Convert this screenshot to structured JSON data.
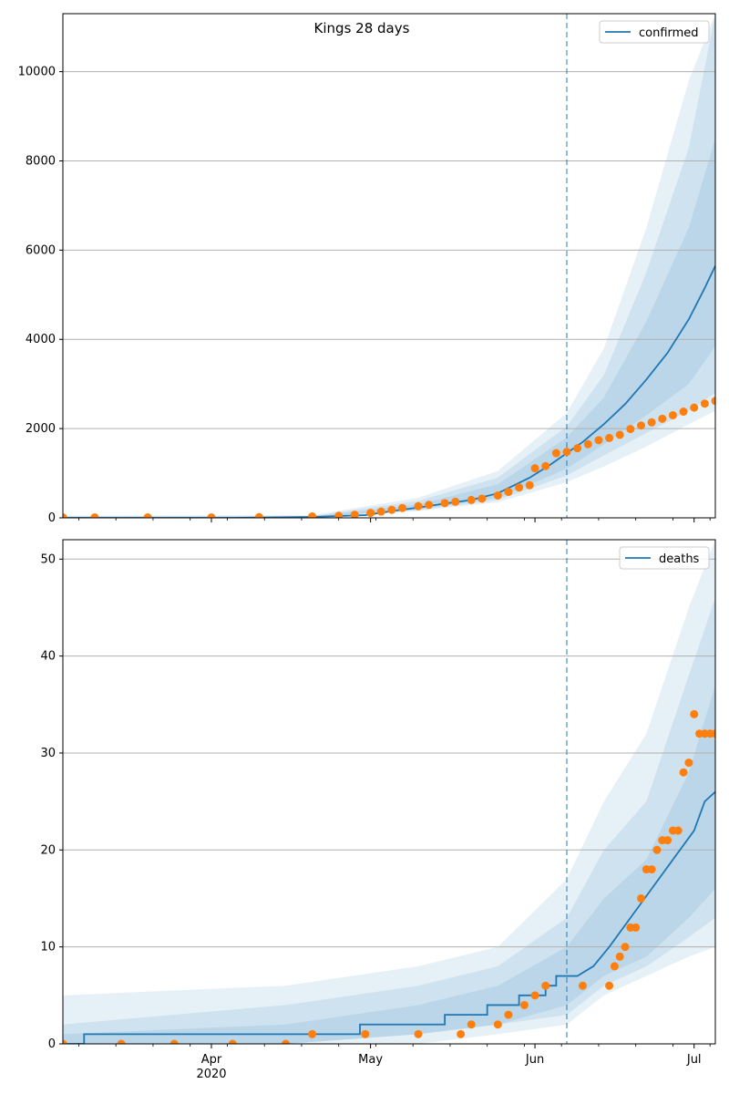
{
  "title": "Kings 28 days",
  "x_axis": {
    "tick_labels": [
      {
        "date": "2020-04-01",
        "label": "Apr",
        "sublabel": "2020"
      },
      {
        "date": "2020-05-01",
        "label": "May",
        "sublabel": ""
      },
      {
        "date": "2020-06-01",
        "label": "Jun",
        "sublabel": ""
      },
      {
        "date": "2020-07-01",
        "label": "Jul",
        "sublabel": ""
      }
    ],
    "range": [
      "2020-03-04",
      "2020-07-05"
    ],
    "forecast_start": "2020-06-07"
  },
  "colors": {
    "line": "#1f77b4",
    "points": "#ff7f0e",
    "grid": "#b0b0b0",
    "band": "#1f77b4",
    "vline": "#1f77b4"
  },
  "chart_data": [
    {
      "type": "line",
      "legend": "confirmed",
      "legend_position": "upper right",
      "ylim": [
        0,
        11300
      ],
      "yticks": [
        0,
        2000,
        4000,
        6000,
        8000,
        10000
      ],
      "grid": "y",
      "median": [
        [
          "2020-03-04",
          0
        ],
        [
          "2020-04-05",
          0
        ],
        [
          "2020-04-20",
          20
        ],
        [
          "2020-04-30",
          60
        ],
        [
          "2020-05-05",
          150
        ],
        [
          "2020-05-10",
          230
        ],
        [
          "2020-05-15",
          320
        ],
        [
          "2020-05-20",
          400
        ],
        [
          "2020-05-25",
          550
        ],
        [
          "2020-05-31",
          900
        ],
        [
          "2020-06-04",
          1200
        ],
        [
          "2020-06-07",
          1450
        ],
        [
          "2020-06-10",
          1700
        ],
        [
          "2020-06-14",
          2100
        ],
        [
          "2020-06-18",
          2550
        ],
        [
          "2020-06-22",
          3100
        ],
        [
          "2020-06-26",
          3700
        ],
        [
          "2020-06-30",
          4450
        ],
        [
          "2020-07-03",
          5150
        ],
        [
          "2020-07-05",
          5650
        ]
      ],
      "bands": [
        {
          "dates": [
            "2020-03-04",
            "2020-04-20",
            "2020-05-10",
            "2020-05-25",
            "2020-06-07",
            "2020-06-14",
            "2020-06-22",
            "2020-06-30",
            "2020-07-05"
          ],
          "lower": [
            0,
            0,
            150,
            350,
            800,
            1150,
            1600,
            2100,
            2400
          ],
          "upper": [
            50,
            60,
            450,
            1050,
            2350,
            3800,
            6500,
            9800,
            11300
          ]
        },
        {
          "dates": [
            "2020-03-04",
            "2020-04-20",
            "2020-05-10",
            "2020-05-25",
            "2020-06-07",
            "2020-06-14",
            "2020-06-22",
            "2020-06-30",
            "2020-07-05"
          ],
          "lower": [
            0,
            10,
            170,
            400,
            950,
            1400,
            1900,
            2400,
            2800
          ],
          "upper": [
            30,
            40,
            380,
            900,
            2050,
            3200,
            5500,
            8300,
            11300
          ]
        },
        {
          "dates": [
            "2020-03-04",
            "2020-04-20",
            "2020-05-10",
            "2020-05-25",
            "2020-06-07",
            "2020-06-14",
            "2020-06-22",
            "2020-06-30",
            "2020-07-05"
          ],
          "lower": [
            0,
            15,
            190,
            450,
            1100,
            1650,
            2300,
            3000,
            3850
          ],
          "upper": [
            15,
            30,
            300,
            750,
            1800,
            2700,
            4400,
            6500,
            8500
          ]
        }
      ],
      "observed": [
        [
          "2020-03-04",
          10
        ],
        [
          "2020-03-10",
          10
        ],
        [
          "2020-03-20",
          10
        ],
        [
          "2020-04-01",
          10
        ],
        [
          "2020-04-10",
          15
        ],
        [
          "2020-04-20",
          30
        ],
        [
          "2020-04-25",
          45
        ],
        [
          "2020-04-28",
          70
        ],
        [
          "2020-05-01",
          110
        ],
        [
          "2020-05-03",
          140
        ],
        [
          "2020-05-05",
          180
        ],
        [
          "2020-05-07",
          220
        ],
        [
          "2020-05-10",
          260
        ],
        [
          "2020-05-12",
          290
        ],
        [
          "2020-05-15",
          330
        ],
        [
          "2020-05-17",
          360
        ],
        [
          "2020-05-20",
          400
        ],
        [
          "2020-05-22",
          430
        ],
        [
          "2020-05-25",
          500
        ],
        [
          "2020-05-27",
          580
        ],
        [
          "2020-05-29",
          680
        ],
        [
          "2020-05-31",
          730
        ],
        [
          "2020-06-01",
          1110
        ],
        [
          "2020-06-03",
          1160
        ],
        [
          "2020-06-05",
          1450
        ],
        [
          "2020-06-07",
          1480
        ],
        [
          "2020-06-09",
          1560
        ],
        [
          "2020-06-11",
          1650
        ],
        [
          "2020-06-13",
          1740
        ],
        [
          "2020-06-15",
          1790
        ],
        [
          "2020-06-17",
          1860
        ],
        [
          "2020-06-19",
          1990
        ],
        [
          "2020-06-21",
          2070
        ],
        [
          "2020-06-23",
          2140
        ],
        [
          "2020-06-25",
          2220
        ],
        [
          "2020-06-27",
          2300
        ],
        [
          "2020-06-29",
          2380
        ],
        [
          "2020-07-01",
          2470
        ],
        [
          "2020-07-03",
          2560
        ],
        [
          "2020-07-05",
          2620
        ]
      ]
    },
    {
      "type": "line",
      "legend": "deaths",
      "legend_position": "upper right",
      "ylim": [
        0,
        52
      ],
      "yticks": [
        0,
        10,
        20,
        30,
        40,
        50
      ],
      "grid": "y",
      "median": [
        [
          "2020-03-04",
          0
        ],
        [
          "2020-03-08",
          0
        ],
        [
          "2020-03-08",
          1
        ],
        [
          "2020-04-29",
          1
        ],
        [
          "2020-04-29",
          2
        ],
        [
          "2020-05-15",
          2
        ],
        [
          "2020-05-15",
          3
        ],
        [
          "2020-05-23",
          3
        ],
        [
          "2020-05-23",
          4
        ],
        [
          "2020-05-29",
          4
        ],
        [
          "2020-05-29",
          5
        ],
        [
          "2020-06-03",
          5
        ],
        [
          "2020-06-03",
          6
        ],
        [
          "2020-06-05",
          6
        ],
        [
          "2020-06-05",
          7
        ],
        [
          "2020-06-09",
          7
        ],
        [
          "2020-06-12",
          8
        ],
        [
          "2020-06-15",
          10
        ],
        [
          "2020-06-19",
          13
        ],
        [
          "2020-06-23",
          16
        ],
        [
          "2020-06-27",
          19
        ],
        [
          "2020-07-01",
          22
        ],
        [
          "2020-07-03",
          25
        ],
        [
          "2020-07-05",
          26
        ]
      ],
      "bands": [
        {
          "dates": [
            "2020-03-04",
            "2020-04-15",
            "2020-05-10",
            "2020-05-25",
            "2020-06-07",
            "2020-06-14",
            "2020-06-22",
            "2020-06-30",
            "2020-07-05"
          ],
          "lower": [
            0,
            0,
            0,
            1,
            2,
            5,
            7,
            9,
            10
          ],
          "upper": [
            5,
            6,
            8,
            10,
            17,
            25,
            32,
            45,
            52
          ]
        },
        {
          "dates": [
            "2020-03-04",
            "2020-04-15",
            "2020-05-10",
            "2020-05-25",
            "2020-06-07",
            "2020-06-14",
            "2020-06-22",
            "2020-06-30",
            "2020-07-05"
          ],
          "lower": [
            0,
            0,
            1,
            2,
            3,
            6,
            8,
            11,
            13
          ],
          "upper": [
            2,
            4,
            6,
            8,
            13,
            20,
            25,
            38,
            46
          ]
        },
        {
          "dates": [
            "2020-03-04",
            "2020-04-15",
            "2020-05-10",
            "2020-05-25",
            "2020-06-07",
            "2020-06-14",
            "2020-06-22",
            "2020-06-30",
            "2020-07-05"
          ],
          "lower": [
            0,
            0,
            1,
            2,
            4,
            7,
            9,
            13,
            16
          ],
          "upper": [
            1,
            2,
            4,
            6,
            10,
            15,
            19,
            28,
            37
          ]
        }
      ],
      "observed": [
        [
          "2020-03-04",
          0
        ],
        [
          "2020-03-15",
          0
        ],
        [
          "2020-03-25",
          0
        ],
        [
          "2020-04-05",
          0
        ],
        [
          "2020-04-15",
          0
        ],
        [
          "2020-04-20",
          1
        ],
        [
          "2020-04-30",
          1
        ],
        [
          "2020-05-10",
          1
        ],
        [
          "2020-05-18",
          1
        ],
        [
          "2020-05-20",
          2
        ],
        [
          "2020-05-25",
          2
        ],
        [
          "2020-05-27",
          3
        ],
        [
          "2020-05-30",
          4
        ],
        [
          "2020-06-01",
          5
        ],
        [
          "2020-06-03",
          6
        ],
        [
          "2020-06-10",
          6
        ],
        [
          "2020-06-15",
          6
        ],
        [
          "2020-06-16",
          8
        ],
        [
          "2020-06-17",
          9
        ],
        [
          "2020-06-18",
          10
        ],
        [
          "2020-06-19",
          12
        ],
        [
          "2020-06-20",
          12
        ],
        [
          "2020-06-21",
          15
        ],
        [
          "2020-06-22",
          18
        ],
        [
          "2020-06-23",
          18
        ],
        [
          "2020-06-24",
          20
        ],
        [
          "2020-06-25",
          21
        ],
        [
          "2020-06-26",
          21
        ],
        [
          "2020-06-27",
          22
        ],
        [
          "2020-06-28",
          22
        ],
        [
          "2020-06-29",
          28
        ],
        [
          "2020-06-30",
          29
        ],
        [
          "2020-07-01",
          34
        ],
        [
          "2020-07-02",
          32
        ],
        [
          "2020-07-03",
          32
        ],
        [
          "2020-07-04",
          32
        ],
        [
          "2020-07-05",
          32
        ]
      ]
    }
  ]
}
